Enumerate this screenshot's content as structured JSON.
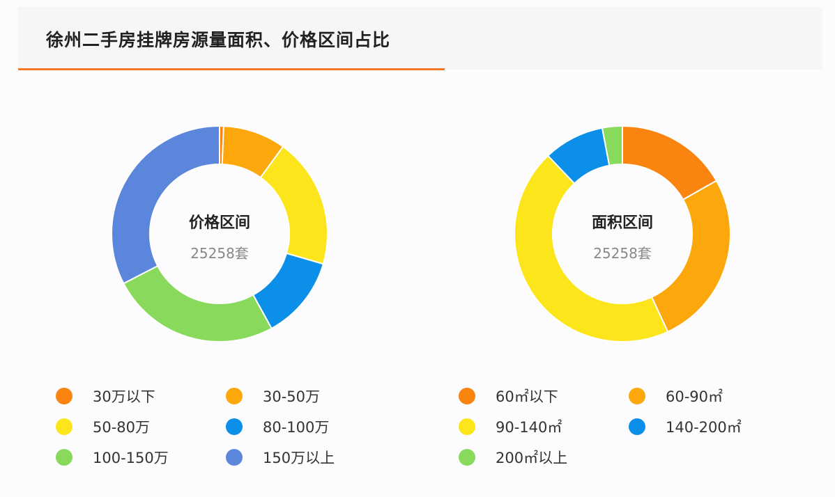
{
  "header": {
    "title": "徐州二手房挂牌房源量面积、价格区间占比"
  },
  "chart_data": [
    {
      "type": "pie",
      "donut": true,
      "center_title": "价格区间",
      "center_subtitle": "25258套",
      "legend_position": "bottom",
      "series": [
        {
          "name": "30万以下",
          "value": 0.6,
          "color": "#fa8410"
        },
        {
          "name": "30-50万",
          "value": 9.4,
          "color": "#fca70c"
        },
        {
          "name": "50-80万",
          "value": 19.5,
          "color": "#fde51c"
        },
        {
          "name": "80-100万",
          "value": 12.5,
          "color": "#0b8fe8"
        },
        {
          "name": "100-150万",
          "value": 25.4,
          "color": "#88d95c"
        },
        {
          "name": "150万以上",
          "value": 32.6,
          "color": "#5b86dc"
        }
      ]
    },
    {
      "type": "pie",
      "donut": true,
      "center_title": "面积区间",
      "center_subtitle": "25258套",
      "legend_position": "bottom",
      "series": [
        {
          "name": "60㎡以下",
          "value": 16.8,
          "color": "#fa8410"
        },
        {
          "name": "60-90㎡",
          "value": 26.3,
          "color": "#fca70c"
        },
        {
          "name": "90-140㎡",
          "value": 44.8,
          "color": "#fde51c"
        },
        {
          "name": "140-200㎡",
          "value": 9.1,
          "color": "#0b8fe8"
        },
        {
          "name": "200㎡以上",
          "value": 3.0,
          "color": "#88d95c"
        }
      ]
    }
  ]
}
